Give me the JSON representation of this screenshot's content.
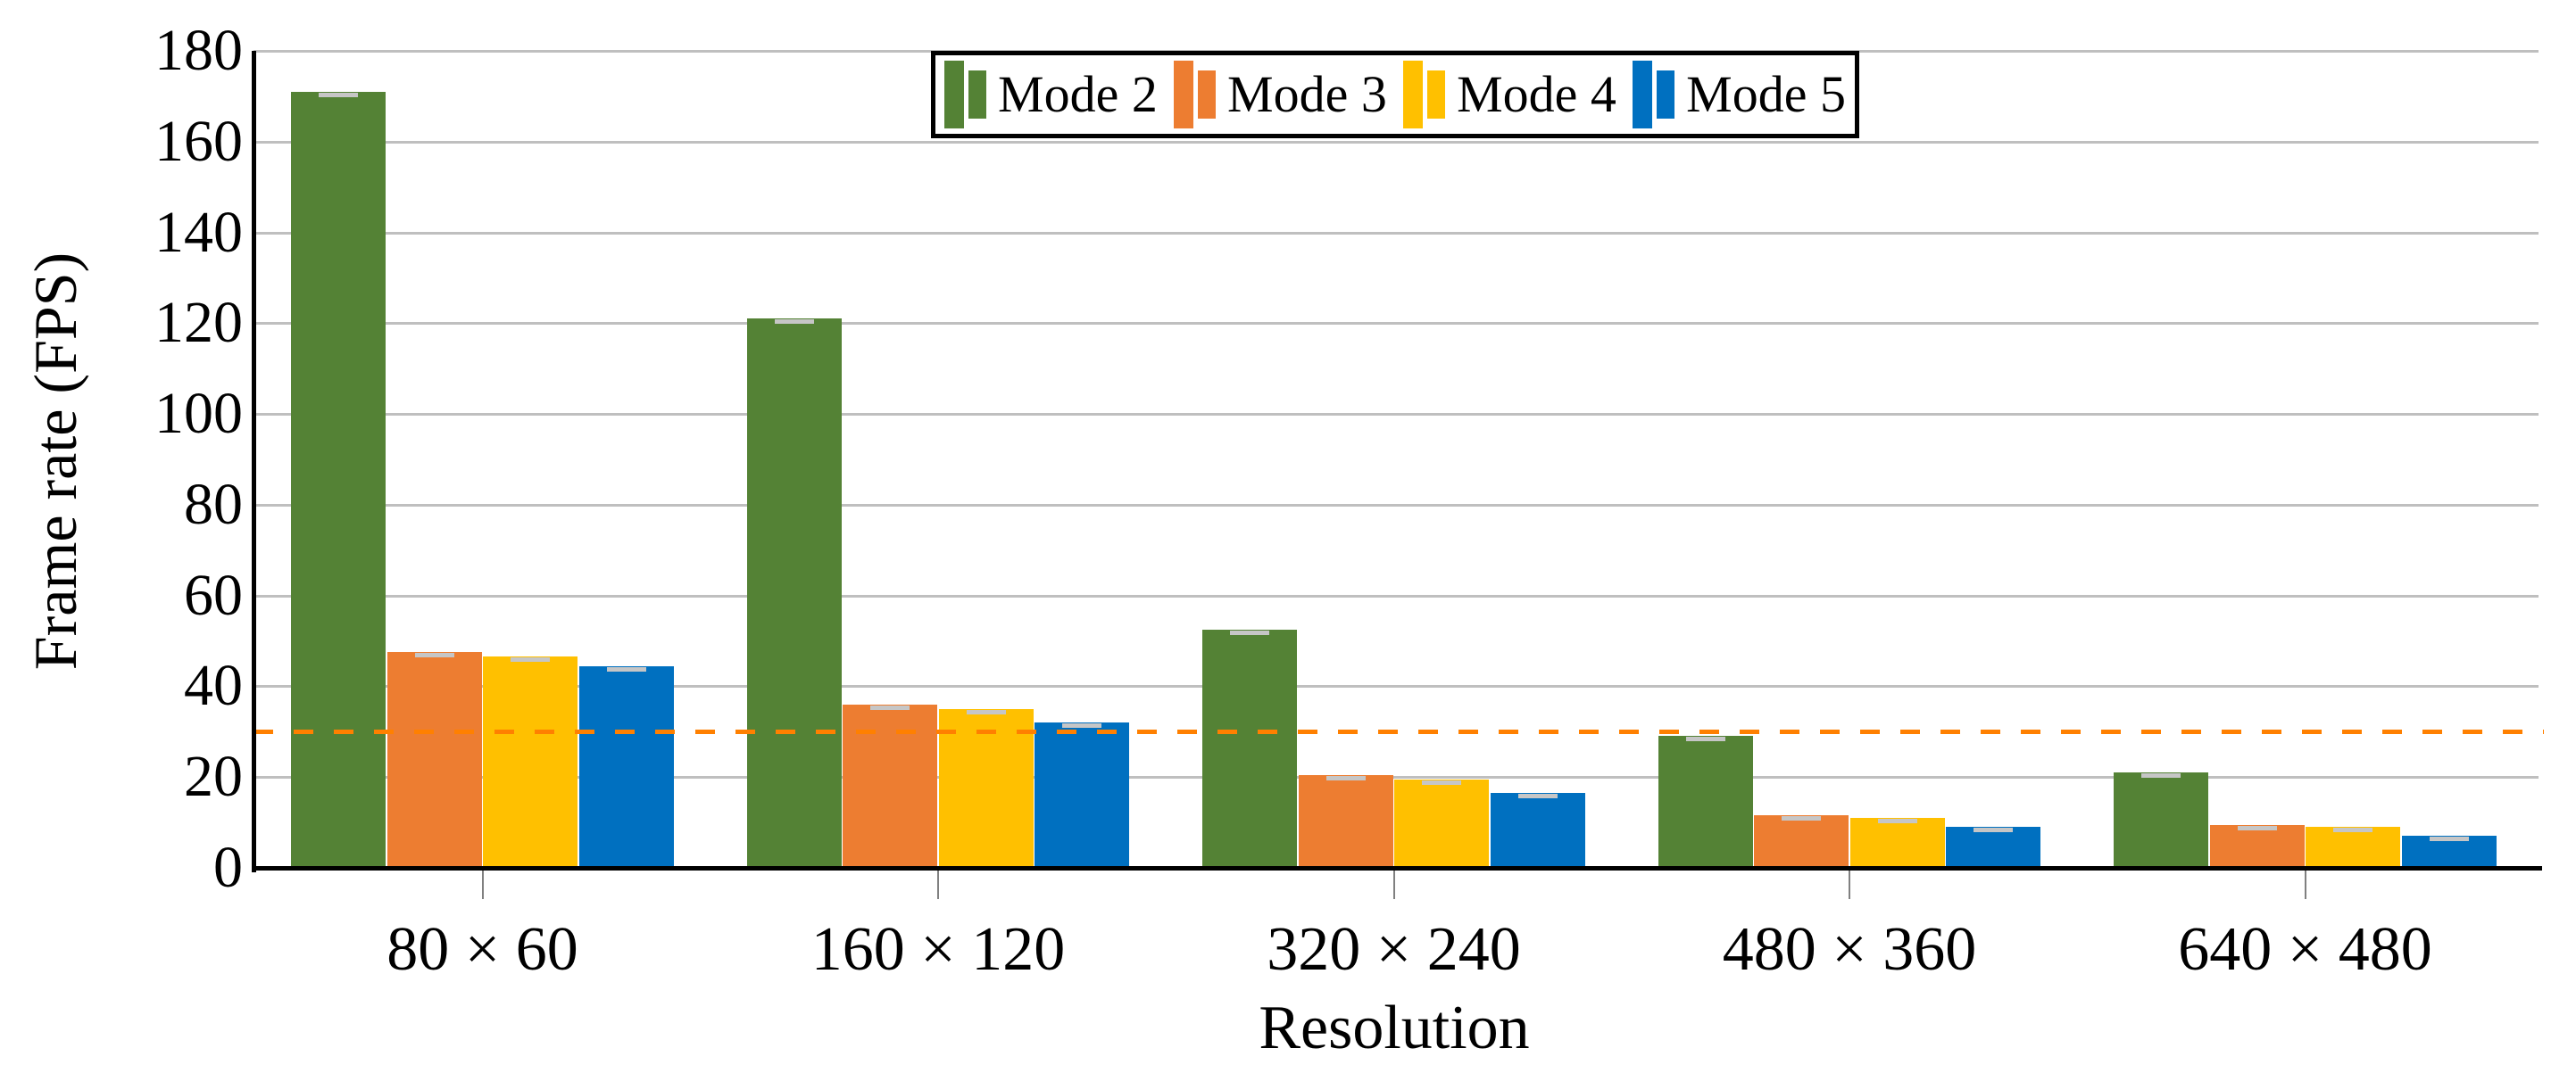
{
  "chart_data": {
    "type": "bar",
    "title": "",
    "xlabel": "Resolution",
    "ylabel": "Frame rate (FPS)",
    "categories": [
      "80 × 60",
      "160 × 120",
      "320 × 240",
      "480 × 360",
      "640 × 480"
    ],
    "series": [
      {
        "name": "Mode 2",
        "color": "#548235",
        "values": [
          171,
          121,
          52.5,
          29,
          21
        ],
        "errors": [
          1.5,
          1.0,
          0.8,
          0.8,
          0.8
        ]
      },
      {
        "name": "Mode 3",
        "color": "#ED7D31",
        "values": [
          47.5,
          36,
          20.5,
          11.5,
          9.5
        ],
        "errors": [
          1.0,
          0.8,
          0.6,
          0.5,
          0.5
        ]
      },
      {
        "name": "Mode 4",
        "color": "#FFC000",
        "values": [
          46.5,
          35,
          19.5,
          11,
          9
        ],
        "errors": [
          1.0,
          0.8,
          0.6,
          0.5,
          0.5
        ]
      },
      {
        "name": "Mode 5",
        "color": "#0070C0",
        "values": [
          44.5,
          32,
          16.5,
          9,
          7
        ],
        "errors": [
          1.0,
          0.8,
          0.6,
          0.5,
          0.5
        ]
      }
    ],
    "reference_line": {
      "value": 30,
      "color": "#FF8000",
      "style": "dashed"
    },
    "ylim": [
      0,
      180
    ],
    "ytick_step": 20,
    "grid": true,
    "legend_position": "top-center",
    "error_bars": true
  },
  "style_colors": {
    "gridline": "#BFBFBF",
    "axis": "#000000",
    "error_cap": "#C6C6C6",
    "tick": "#808080",
    "background": "#FFFFFF"
  }
}
